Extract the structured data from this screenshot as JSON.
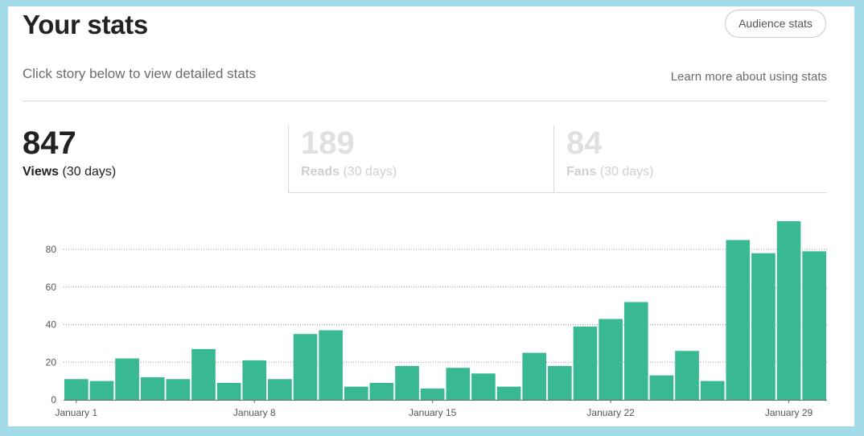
{
  "header": {
    "title": "Your stats",
    "audience_button": "Audience stats",
    "subtitle": "Click story below to view detailed stats",
    "learn_link": "Learn more about using stats"
  },
  "stats": {
    "views": {
      "value": "847",
      "label": "Views",
      "period": "(30 days)"
    },
    "reads": {
      "value": "189",
      "label": "Reads",
      "period": "(30 days)"
    },
    "fans": {
      "value": "84",
      "label": "Fans",
      "period": "(30 days)"
    }
  },
  "colors": {
    "bar": "#38b994",
    "active_text": "#222222",
    "inactive_text": "#d6d6d6"
  },
  "chart_data": {
    "type": "bar",
    "title": "",
    "xlabel": "",
    "ylabel": "",
    "ylim": [
      0,
      95
    ],
    "yticks": [
      0,
      20,
      40,
      60,
      80
    ],
    "grid": true,
    "x_tick_labels": [
      {
        "index": 0,
        "label": "January 1"
      },
      {
        "index": 7,
        "label": "January 8"
      },
      {
        "index": 14,
        "label": "January 15"
      },
      {
        "index": 21,
        "label": "January 22"
      },
      {
        "index": 28,
        "label": "January 29"
      }
    ],
    "values": [
      11,
      10,
      22,
      12,
      11,
      27,
      9,
      21,
      11,
      35,
      37,
      7,
      9,
      18,
      6,
      17,
      14,
      7,
      25,
      18,
      39,
      43,
      52,
      13,
      26,
      10,
      85,
      78,
      95,
      79
    ]
  }
}
